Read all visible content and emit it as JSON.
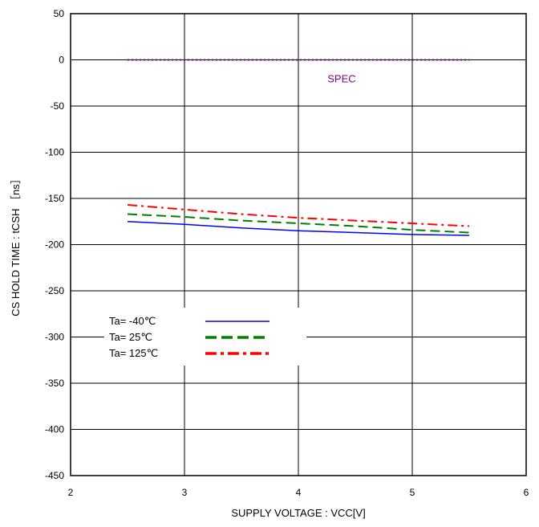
{
  "chart_data": {
    "type": "line",
    "xlabel": "SUPPLY VOLTAGE : VCC[V]",
    "ylabel": "CS HOLD TIME : tCSH ［ns］",
    "xlim": [
      2,
      6
    ],
    "ylim": [
      -450,
      50
    ],
    "xticks": [
      2,
      3,
      4,
      5,
      6
    ],
    "yticks": [
      50,
      0,
      -50,
      -100,
      -150,
      -200,
      -250,
      -300,
      -350,
      -400,
      -450
    ],
    "grid": true,
    "legend_position": "lower-left",
    "series": [
      {
        "name": "Ta= -40℃",
        "color": "#0000ff",
        "style": "solid",
        "x": [
          2.5,
          3.0,
          3.5,
          4.0,
          4.5,
          5.0,
          5.5
        ],
        "y": [
          -175,
          -178,
          -182,
          -185,
          -187,
          -189,
          -190
        ]
      },
      {
        "name": "Ta=  25℃",
        "color": "#008000",
        "style": "dashed",
        "x": [
          2.5,
          3.0,
          3.5,
          4.0,
          4.5,
          5.0,
          5.5
        ],
        "y": [
          -167,
          -170,
          -174,
          -177,
          -180,
          -184,
          -187
        ]
      },
      {
        "name": "Ta= 125℃",
        "color": "#ff0000",
        "style": "dashdot",
        "x": [
          2.5,
          3.0,
          3.5,
          4.0,
          4.5,
          5.0,
          5.5
        ],
        "y": [
          -157,
          -162,
          -167,
          -171,
          -174,
          -177,
          -180
        ]
      }
    ],
    "annotations": [
      {
        "name": "SPEC",
        "label": "SPEC",
        "color": "#800080",
        "style": "dotted",
        "x": [
          2.5,
          5.5
        ],
        "y": [
          0,
          0
        ]
      }
    ]
  }
}
